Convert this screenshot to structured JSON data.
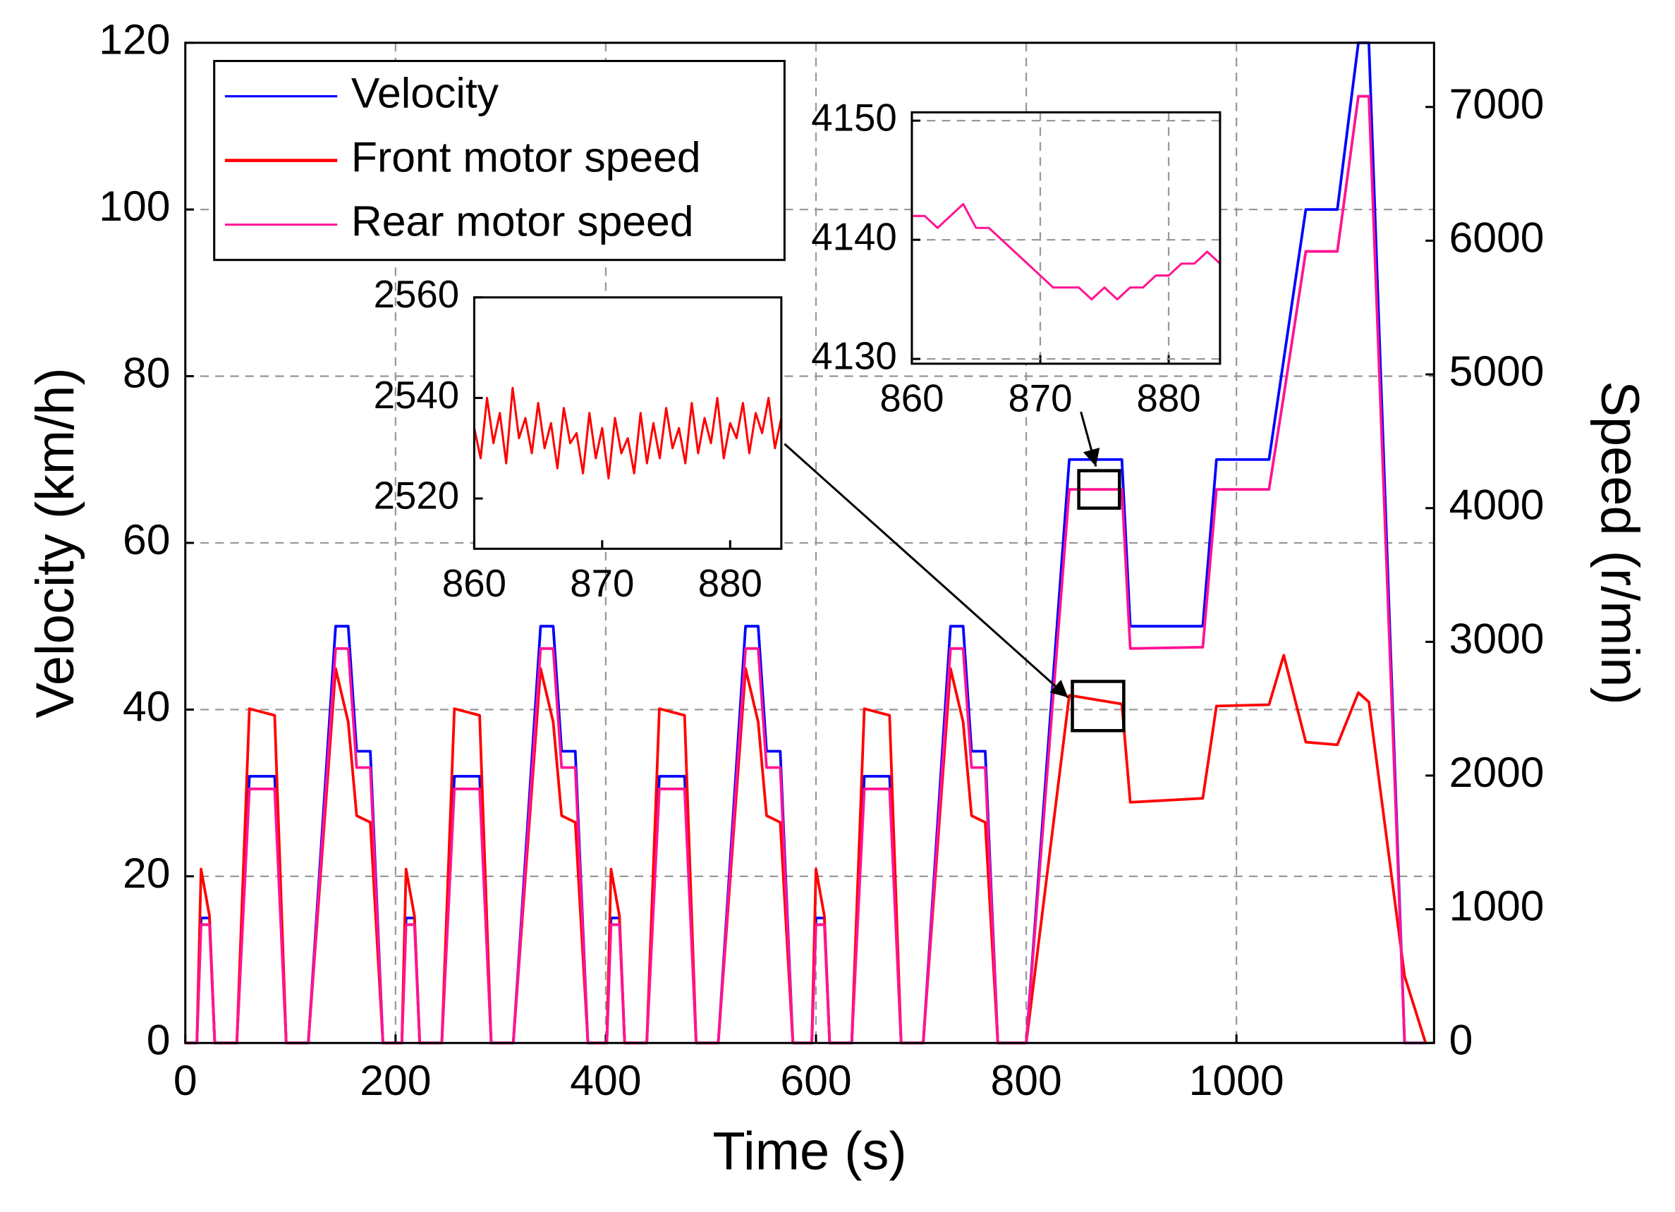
{
  "chart_data": [
    {
      "type": "line",
      "xlabel": "Time (s)",
      "ylabel": "Velocity (km/h)",
      "y2label": "Speed (r/min)",
      "x": [
        0,
        11,
        15,
        23,
        28,
        49,
        61,
        85,
        96,
        117,
        143,
        155,
        163,
        176,
        188,
        195,
        206,
        210,
        218,
        223,
        244,
        256,
        280,
        291,
        312,
        338,
        350,
        358,
        371,
        383,
        390,
        401,
        405,
        413,
        418,
        439,
        451,
        475,
        486,
        507,
        533,
        545,
        553,
        566,
        578,
        585,
        596,
        600,
        608,
        613,
        634,
        646,
        670,
        681,
        702,
        728,
        740,
        748,
        761,
        773,
        780,
        800,
        841,
        891,
        899,
        968,
        981,
        1031,
        1045,
        1066,
        1096,
        1116,
        1126,
        1160,
        1180
      ],
      "series": [
        {
          "name": "Velocity",
          "color": "#0000ff",
          "axis": "y",
          "values": [
            0,
            0,
            15,
            15,
            0,
            0,
            32,
            32,
            0,
            0,
            50,
            50,
            35,
            35,
            0,
            0,
            0,
            15,
            15,
            0,
            0,
            32,
            32,
            0,
            0,
            50,
            50,
            35,
            35,
            0,
            0,
            0,
            15,
            15,
            0,
            0,
            32,
            32,
            0,
            0,
            50,
            50,
            35,
            35,
            0,
            0,
            0,
            15,
            15,
            0,
            0,
            32,
            32,
            0,
            0,
            50,
            50,
            35,
            35,
            0,
            0,
            0,
            70,
            70,
            50,
            50,
            70,
            70,
            82,
            100,
            100,
            120,
            120,
            0,
            0
          ]
        },
        {
          "name": "Front motor speed",
          "color": "#ff0000",
          "axis": "y2",
          "values": [
            0,
            0,
            1300,
            950,
            0,
            0,
            2500,
            2450,
            0,
            0,
            2800,
            2400,
            1700,
            1650,
            0,
            0,
            0,
            1300,
            950,
            0,
            0,
            2500,
            2450,
            0,
            0,
            2800,
            2400,
            1700,
            1650,
            0,
            0,
            0,
            1300,
            950,
            0,
            0,
            2500,
            2450,
            0,
            0,
            2800,
            2400,
            1700,
            1650,
            0,
            0,
            0,
            1300,
            950,
            0,
            0,
            2500,
            2450,
            0,
            0,
            2800,
            2400,
            1700,
            1650,
            0,
            0,
            0,
            2600,
            2535,
            1800,
            1830,
            2520,
            2530,
            2900,
            2250,
            2230,
            2620,
            2550,
            500,
            0
          ]
        },
        {
          "name": "Rear motor speed",
          "color": "#ff1493",
          "axis": "y2",
          "values": [
            0,
            0,
            885,
            885,
            0,
            0,
            1900,
            1900,
            0,
            0,
            2950,
            2950,
            2060,
            2060,
            0,
            0,
            0,
            885,
            885,
            0,
            0,
            1900,
            1900,
            0,
            0,
            2950,
            2950,
            2060,
            2060,
            0,
            0,
            0,
            885,
            885,
            0,
            0,
            1900,
            1900,
            0,
            0,
            2950,
            2950,
            2060,
            2060,
            0,
            0,
            0,
            885,
            885,
            0,
            0,
            1900,
            1900,
            0,
            0,
            2950,
            2950,
            2060,
            2060,
            0,
            0,
            0,
            4140,
            4140,
            2950,
            2960,
            4140,
            4140,
            4840,
            5920,
            5920,
            7080,
            7080,
            0,
            0
          ]
        }
      ],
      "xlim": [
        0,
        1188
      ],
      "xticks": [
        0,
        200,
        400,
        600,
        800,
        1000
      ],
      "ylim": [
        0,
        120
      ],
      "yticks": [
        0,
        20,
        40,
        60,
        80,
        100,
        120
      ],
      "y2lim": [
        0,
        7480
      ],
      "y2ticks": [
        0,
        1000,
        2000,
        3000,
        4000,
        5000,
        6000,
        7000
      ],
      "grid": true,
      "legend": "upper left"
    },
    {
      "type": "line",
      "x": [
        860,
        860.5,
        861,
        861.5,
        862,
        862.5,
        863,
        863.5,
        864,
        864.5,
        865,
        865.5,
        866,
        866.5,
        867,
        867.5,
        868,
        868.5,
        869,
        869.5,
        870,
        870.5,
        871,
        871.5,
        872,
        872.5,
        873,
        873.5,
        874,
        874.5,
        875,
        875.5,
        876,
        876.5,
        877,
        877.5,
        878,
        878.5,
        879,
        879.5,
        880,
        880.5,
        881,
        881.5,
        882,
        882.5,
        883,
        883.5,
        884
      ],
      "series": [
        {
          "color": "#ff0000",
          "values": [
            2534,
            2528,
            2540,
            2531,
            2537,
            2527,
            2542,
            2532,
            2536,
            2529,
            2539,
            2530,
            2535,
            2526,
            2538,
            2531,
            2533,
            2525,
            2537,
            2528,
            2534,
            2524,
            2536,
            2529,
            2532,
            2525,
            2537,
            2527,
            2535,
            2528,
            2538,
            2530,
            2534,
            2527,
            2539,
            2529,
            2536,
            2531,
            2540,
            2528,
            2535,
            2532,
            2539,
            2529,
            2537,
            2533,
            2540,
            2530,
            2536
          ]
        }
      ],
      "xlim": [
        860,
        884
      ],
      "xticks": [
        860,
        870,
        880
      ],
      "ylim": [
        2510,
        2560
      ],
      "yticks": [
        2520,
        2540,
        2560
      ],
      "grid": false
    },
    {
      "type": "line",
      "x": [
        860,
        861,
        862,
        863,
        864,
        865,
        866,
        867,
        868,
        869,
        870,
        871,
        872,
        873,
        874,
        875,
        876,
        877,
        878,
        879,
        880,
        881,
        882,
        883,
        884
      ],
      "series": [
        {
          "color": "#ff1493",
          "values": [
            4142,
            4142,
            4141,
            4142,
            4143,
            4141,
            4141,
            4140,
            4139,
            4138,
            4137,
            4136,
            4136,
            4136,
            4135,
            4136,
            4135,
            4136,
            4136,
            4137,
            4137,
            4138,
            4138,
            4139,
            4138
          ]
        }
      ],
      "xlim": [
        860,
        884
      ],
      "xticks": [
        860,
        870,
        880
      ],
      "ylim": [
        4129.6,
        4150.7
      ],
      "yticks": [
        4130,
        4140,
        4150
      ],
      "grid": true
    }
  ]
}
